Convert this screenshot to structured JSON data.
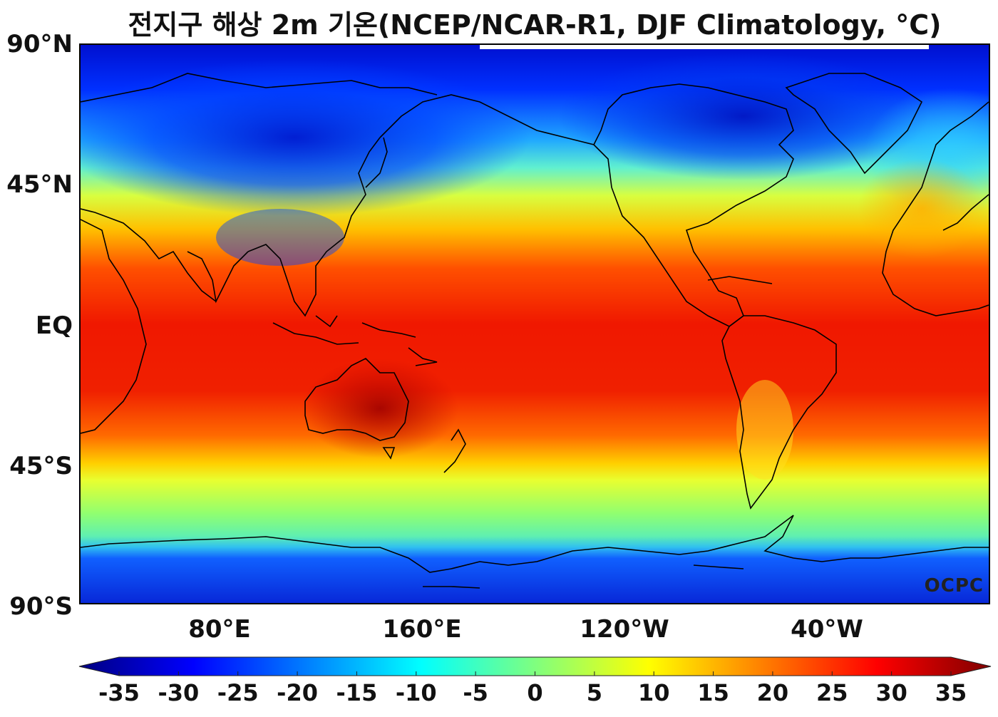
{
  "title": "전지구 해상 2m 기온(NCEP/NCAR-R1, DJF Climatology, °C)",
  "watermark": "OCPC",
  "y_ticks": [
    "90°N",
    "45°N",
    "EQ",
    "45°S",
    "90°S"
  ],
  "x_ticks": [
    "80°E",
    "160°E",
    "120°W",
    "40°W"
  ],
  "colorbar": {
    "ticks": [
      "-35",
      "-30",
      "-25",
      "-20",
      "-15",
      "-10",
      "-5",
      "0",
      "5",
      "10",
      "15",
      "20",
      "25",
      "30",
      "35"
    ],
    "colors": [
      "#00007f",
      "#0000ff",
      "#007fff",
      "#00ffff",
      "#7fff7f",
      "#ffff00",
      "#ff7f00",
      "#ff0000",
      "#7f0000"
    ]
  },
  "palette": {
    "pole_south": "#0a2de0",
    "subpolar_south": "#2a8cf0",
    "cool": "#5fe8b0",
    "mild": "#e8ff30",
    "warm": "#ffb000",
    "hot": "#ff3a00",
    "tropical": "#e01000",
    "arctic": "#0010d0",
    "coastline": "#000000"
  }
}
